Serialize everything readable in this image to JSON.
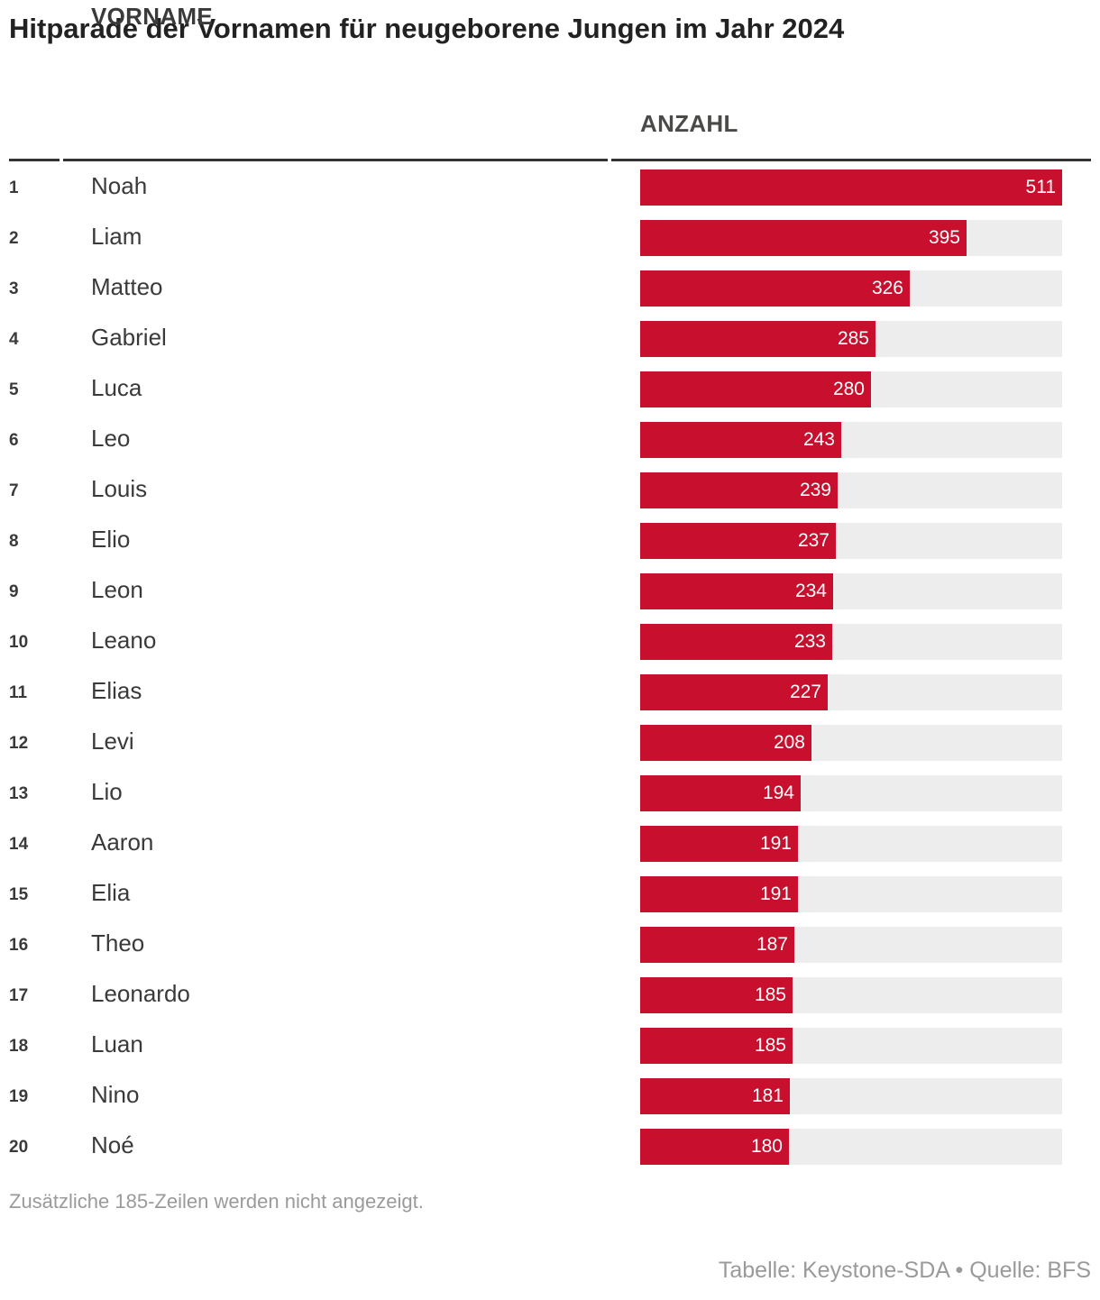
{
  "title": "Hitparade der Vornamen für neugeborene Jungen im Jahr 2024",
  "columns": {
    "name": "VORNAME",
    "value": "ANZAHL"
  },
  "colors": {
    "bar": "#c8102e",
    "track": "#ededed"
  },
  "chart_data": {
    "type": "bar",
    "orientation": "horizontal",
    "title": "Hitparade der Vornamen für neugeborene Jungen im Jahr 2024",
    "xlim": [
      0,
      511
    ],
    "rows": [
      {
        "rank": "1",
        "name": "Noah",
        "value": 511
      },
      {
        "rank": "2",
        "name": "Liam",
        "value": 395
      },
      {
        "rank": "3",
        "name": "Matteo",
        "value": 326
      },
      {
        "rank": "4",
        "name": "Gabriel",
        "value": 285
      },
      {
        "rank": "5",
        "name": "Luca",
        "value": 280
      },
      {
        "rank": "6",
        "name": "Leo",
        "value": 243
      },
      {
        "rank": "7",
        "name": "Louis",
        "value": 239
      },
      {
        "rank": "8",
        "name": "Elio",
        "value": 237
      },
      {
        "rank": "9",
        "name": "Leon",
        "value": 234
      },
      {
        "rank": "10",
        "name": "Leano",
        "value": 233
      },
      {
        "rank": "11",
        "name": "Elias",
        "value": 227
      },
      {
        "rank": "12",
        "name": "Levi",
        "value": 208
      },
      {
        "rank": "13",
        "name": "Lio",
        "value": 194
      },
      {
        "rank": "14",
        "name": "Aaron",
        "value": 191
      },
      {
        "rank": "15",
        "name": "Elia",
        "value": 191
      },
      {
        "rank": "16",
        "name": "Theo",
        "value": 187
      },
      {
        "rank": "17",
        "name": "Leonardo",
        "value": 185
      },
      {
        "rank": "18",
        "name": "Luan",
        "value": 185
      },
      {
        "rank": "19",
        "name": "Nino",
        "value": 181
      },
      {
        "rank": "20",
        "name": "Noé",
        "value": 180
      }
    ]
  },
  "note": "Zusätzliche 185-Zeilen werden nicht angezeigt.",
  "source": "Tabelle: Keystone-SDA • Quelle: BFS"
}
